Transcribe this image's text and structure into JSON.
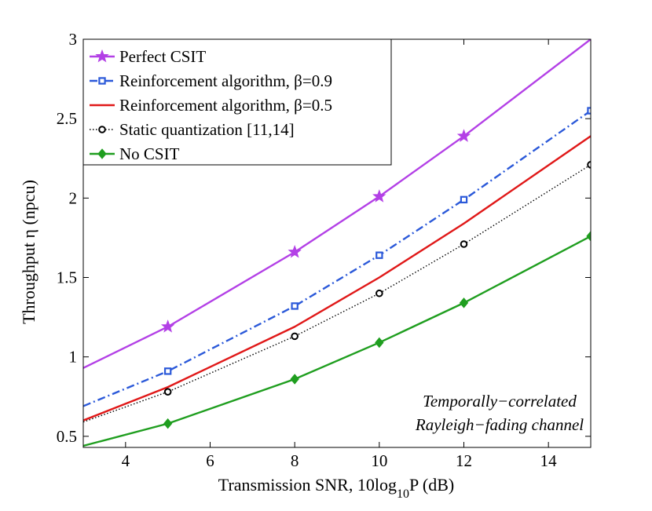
{
  "chart_data": {
    "type": "line",
    "title": "",
    "xlabel": {
      "prefix": "Transmission SNR, 10log",
      "sub": "10",
      "suffix": "P (dB)"
    },
    "ylabel": "Throughput η (npcu)",
    "xlim": [
      3,
      15
    ],
    "ylim": [
      0.43,
      3
    ],
    "xticks": [
      4,
      6,
      8,
      10,
      12,
      14
    ],
    "yticks": [
      0.5,
      1,
      1.5,
      2,
      2.5,
      3
    ],
    "yticklabels": [
      "0.5",
      "1",
      "1.5",
      "2",
      "2.5",
      "3"
    ],
    "grid": false,
    "legend_position": "top-left",
    "annotation": [
      "Temporally−correlated",
      "Rayleigh−fading channel"
    ],
    "series": [
      {
        "name": "Perfect CSIT",
        "color": "#b340e6",
        "dash": "solid",
        "marker": "star",
        "x": [
          3,
          5,
          8,
          10,
          12,
          15
        ],
        "y": [
          0.93,
          1.19,
          1.66,
          2.01,
          2.39,
          3.0
        ],
        "marker_x": [
          5,
          8,
          10,
          12
        ]
      },
      {
        "name": "Reinforcement algorithm, β=0.9",
        "color": "#2b59d9",
        "dash": "dashdot",
        "marker": "square",
        "x": [
          3,
          5,
          8,
          10,
          12,
          15
        ],
        "y": [
          0.69,
          0.91,
          1.32,
          1.64,
          1.99,
          2.55
        ],
        "marker_x": [
          5,
          8,
          10,
          12,
          15
        ]
      },
      {
        "name": "Reinforcement algorithm, β=0.5",
        "color": "#e01818",
        "dash": "solid",
        "marker": "none",
        "x": [
          3,
          5,
          8,
          10,
          12,
          15
        ],
        "y": [
          0.6,
          0.81,
          1.19,
          1.5,
          1.84,
          2.39
        ],
        "marker_x": []
      },
      {
        "name": "Static quantization [11,14]",
        "color": "#000000",
        "dash": "dotted",
        "marker": "circle",
        "x": [
          3,
          5,
          8,
          10,
          12,
          15
        ],
        "y": [
          0.59,
          0.78,
          1.13,
          1.4,
          1.71,
          2.21
        ],
        "marker_x": [
          5,
          8,
          10,
          12,
          15
        ]
      },
      {
        "name": "No CSIT",
        "color": "#1f9e1f",
        "dash": "solid",
        "marker": "diamond",
        "x": [
          3,
          5,
          8,
          10,
          12,
          15
        ],
        "y": [
          0.44,
          0.58,
          0.86,
          1.09,
          1.34,
          1.76
        ],
        "marker_x": [
          5,
          8,
          10,
          12,
          15
        ]
      }
    ]
  }
}
